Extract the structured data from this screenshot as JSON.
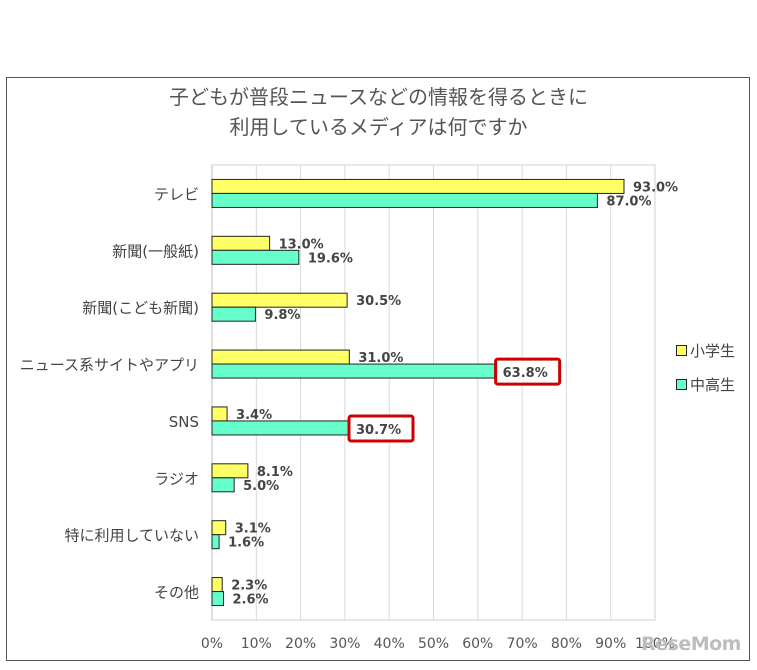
{
  "chart_data": {
    "type": "bar",
    "orientation": "horizontal",
    "title": "子どもが普段ニュースなどの情報を得るときに",
    "subtitle": "利用しているメディアは何ですか",
    "categories": [
      "テレビ",
      "新聞(一般紙)",
      "新聞(こども新聞)",
      "ニュース系サイトやアプリ",
      "SNS",
      "ラジオ",
      "特に利用していない",
      "その他"
    ],
    "series": [
      {
        "name": "小学生",
        "color": "#ffff66",
        "values": [
          93.0,
          13.0,
          30.5,
          31.0,
          3.4,
          8.1,
          3.1,
          2.3
        ],
        "labels": [
          "93.0%",
          "13.0%",
          "30.5%",
          "31.0%",
          "3.4%",
          "8.1%",
          "3.1%",
          "2.3%"
        ]
      },
      {
        "name": "中高生",
        "color": "#66ffcc",
        "values": [
          87.0,
          19.6,
          9.8,
          63.8,
          30.7,
          5.0,
          1.6,
          2.6
        ],
        "labels": [
          "87.0%",
          "19.6%",
          "9.8%",
          "63.8%",
          "30.7%",
          "5.0%",
          "1.6%",
          "2.6%"
        ]
      }
    ],
    "xlim": [
      0,
      100
    ],
    "x_ticks": [
      "0%",
      "10%",
      "20%",
      "30%",
      "40%",
      "50%",
      "60%",
      "70%",
      "80%",
      "90%",
      "100%"
    ],
    "grid": true,
    "legend_position": "right",
    "highlighted_labels": [
      {
        "category": "ニュース系サイトやアプリ",
        "series": "中高生",
        "border_color": "#cc0000"
      },
      {
        "category": "SNS",
        "series": "中高生",
        "border_color": "#cc0000"
      }
    ]
  },
  "watermark": "ReseMom"
}
